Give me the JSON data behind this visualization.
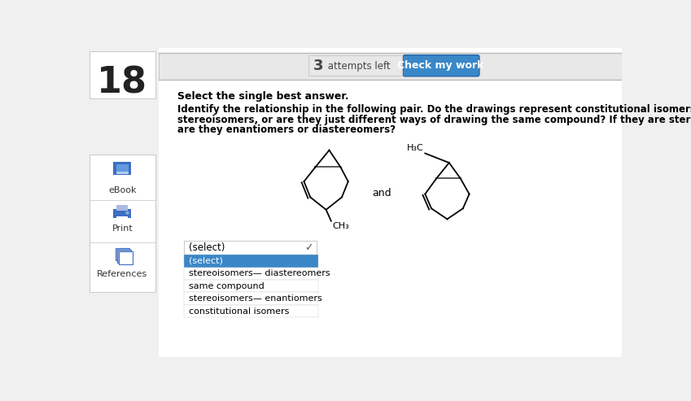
{
  "page_number": "18",
  "attempts_num": "3",
  "attempts_text": " attempts left",
  "button_text": "Check my work",
  "bold_instruction": "Select the single best answer.",
  "question_line1": "Identify the relationship in the following pair. Do the drawings represent constitutional isomers or",
  "question_line2": "stereoisomers, or are they just different ways of drawing the same compound? If they are stereoisomers,",
  "question_line3": "are they enantiomers or diastereomers?",
  "and_text": "and",
  "ch3_label": "CH₃",
  "h3c_label": "H₃C",
  "dropdown_text": "(select)",
  "dropdown_items": [
    "(select)",
    "stereoisomers— diastereomers",
    "same compound",
    "stereoisomers— enantiomers",
    "constitutional isomers"
  ],
  "sidebar_items": [
    "eBook",
    "Print",
    "References"
  ],
  "bg_color": "#f0f0f0",
  "content_bg": "#ffffff",
  "button_color": "#3a87c8",
  "button_text_color": "#ffffff",
  "dropdown_selected_bg": "#3a87c8",
  "dropdown_selected_fg": "#ffffff",
  "dropdown_bg": "#ffffff",
  "border_color": "#cccccc",
  "text_color": "#000000",
  "sidebar_bg": "#ffffff",
  "number_color": "#222222",
  "attempts_color": "#444444",
  "topbar_bg": "#e8e8e8",
  "sidebar_icon_blue": "#3a6fc4",
  "sidebar_border": "#cccccc"
}
